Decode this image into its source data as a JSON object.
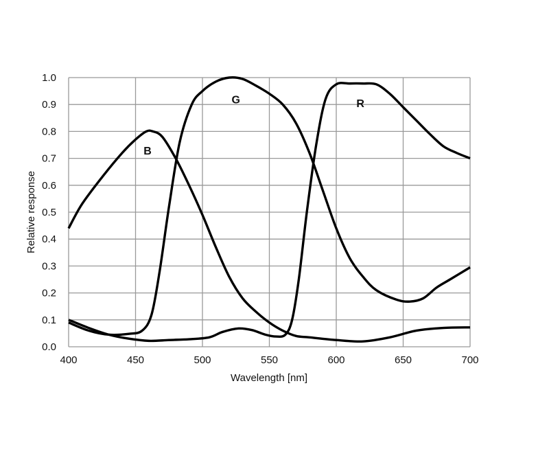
{
  "chart_data": {
    "type": "line",
    "title": "",
    "xlabel": "Wavelength [nm]",
    "ylabel": "Relative response",
    "xlim": [
      400,
      700
    ],
    "ylim": [
      0,
      1.0
    ],
    "xticks": [
      400,
      450,
      500,
      550,
      600,
      650,
      700
    ],
    "xtick_labels": [
      "400",
      "450",
      "500",
      "550",
      "600",
      "650",
      "700"
    ],
    "yticks": [
      0,
      0.1,
      0.2,
      0.3,
      0.4,
      0.5,
      0.6,
      0.7,
      0.8,
      0.9,
      1.0
    ],
    "ytick_labels": [
      "0.0",
      "0.1",
      "0.2",
      "0.3",
      "0.4",
      "0.5",
      "0.6",
      "0.7",
      "0.8",
      "0.9",
      "1.0"
    ],
    "grid": true,
    "legend": "none",
    "series": [
      {
        "name": "B",
        "label_at": [
          459,
          0.73
        ],
        "x": [
          400,
          410,
          425,
          440,
          450,
          458,
          463,
          470,
          480,
          490,
          500,
          510,
          520,
          530,
          540,
          550,
          560,
          570,
          580,
          600,
          620,
          640,
          660,
          680,
          700
        ],
        "y": [
          0.44,
          0.53,
          0.63,
          0.72,
          0.77,
          0.8,
          0.8,
          0.78,
          0.7,
          0.6,
          0.49,
          0.37,
          0.26,
          0.18,
          0.13,
          0.09,
          0.06,
          0.04,
          0.035,
          0.025,
          0.02,
          0.035,
          0.06,
          0.07,
          0.072
        ]
      },
      {
        "name": "G",
        "label_at": [
          525,
          0.92
        ],
        "x": [
          400,
          415,
          430,
          445,
          455,
          462,
          468,
          475,
          483,
          492,
          500,
          510,
          520,
          530,
          540,
          550,
          560,
          570,
          580,
          590,
          600,
          610,
          620,
          630,
          645,
          655,
          665,
          675,
          685,
          700
        ],
        "y": [
          0.09,
          0.06,
          0.045,
          0.048,
          0.06,
          0.12,
          0.28,
          0.52,
          0.76,
          0.9,
          0.95,
          0.985,
          1.0,
          0.995,
          0.97,
          0.94,
          0.9,
          0.83,
          0.72,
          0.58,
          0.44,
          0.33,
          0.26,
          0.21,
          0.175,
          0.168,
          0.18,
          0.22,
          0.25,
          0.295
        ]
      },
      {
        "name": "R",
        "label_at": [
          618,
          0.905
        ],
        "x": [
          400,
          415,
          430,
          445,
          460,
          475,
          490,
          505,
          515,
          527,
          537,
          547,
          555,
          562,
          567,
          572,
          578,
          585,
          592,
          600,
          610,
          620,
          630,
          640,
          650,
          660,
          670,
          680,
          690,
          700
        ],
        "y": [
          0.1,
          0.07,
          0.045,
          0.03,
          0.022,
          0.025,
          0.028,
          0.035,
          0.055,
          0.068,
          0.062,
          0.045,
          0.038,
          0.045,
          0.1,
          0.25,
          0.5,
          0.75,
          0.92,
          0.975,
          0.978,
          0.978,
          0.975,
          0.94,
          0.89,
          0.84,
          0.79,
          0.745,
          0.72,
          0.7
        ]
      }
    ]
  }
}
